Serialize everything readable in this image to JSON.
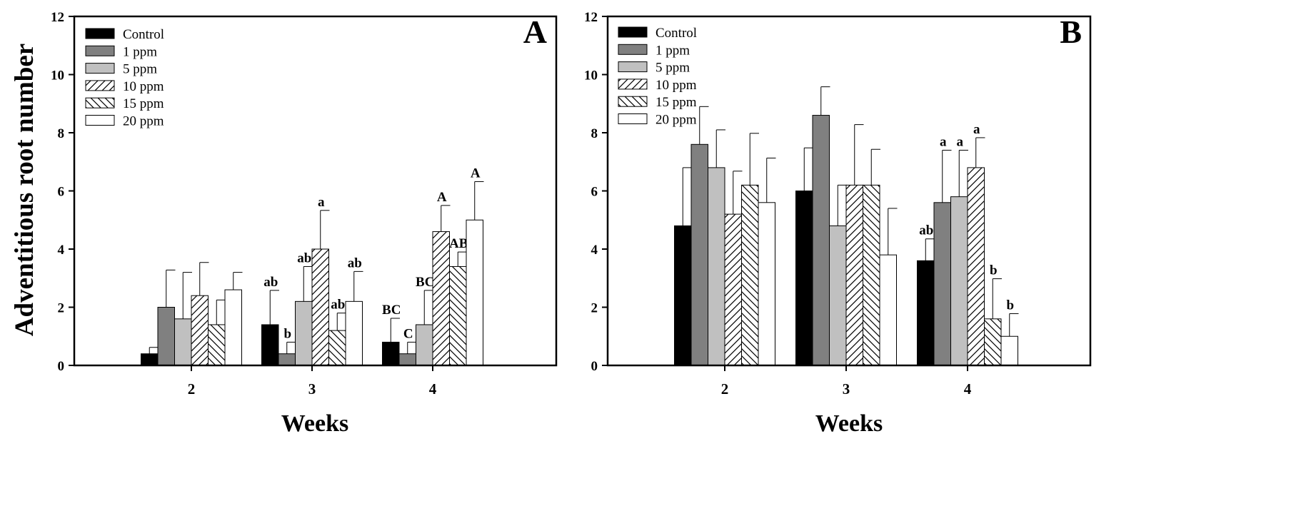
{
  "chart_data": [
    {
      "type": "bar",
      "panel_label": "A",
      "xlabel": "Weeks",
      "ylabel": "Adventitious root number",
      "ylim": [
        0,
        12
      ],
      "yticks": [
        "0",
        "2",
        "4",
        "6",
        "8",
        "10",
        "12"
      ],
      "categories": [
        "2",
        "3",
        "4"
      ],
      "legend_position": "top-left",
      "grid": false,
      "series": [
        {
          "name": "Control",
          "fill": "solid-black",
          "values": [
            0.4,
            1.4,
            0.8
          ],
          "errors": [
            0.22,
            1.18,
            0.82
          ],
          "labels": [
            "",
            "ab",
            "BC"
          ]
        },
        {
          "name": "1 ppm",
          "fill": "solid-dark-gray",
          "values": [
            2.0,
            0.4,
            0.4
          ],
          "errors": [
            1.28,
            0.4,
            0.4
          ],
          "labels": [
            "",
            "b",
            "C"
          ]
        },
        {
          "name": "5 ppm",
          "fill": "solid-light-gray",
          "values": [
            1.6,
            2.2,
            1.4
          ],
          "errors": [
            1.6,
            1.2,
            1.18
          ],
          "labels": [
            "",
            "ab",
            "BC"
          ]
        },
        {
          "name": "10 ppm",
          "fill": "forward-diagonal-hatch",
          "values": [
            2.4,
            4.0,
            4.6
          ],
          "errors": [
            1.14,
            1.33,
            0.9
          ],
          "labels": [
            "",
            "a",
            "A"
          ]
        },
        {
          "name": "15 ppm",
          "fill": "backward-diagonal-hatch",
          "values": [
            1.4,
            1.2,
            3.4
          ],
          "errors": [
            0.85,
            0.6,
            0.5
          ],
          "labels": [
            "",
            "ab",
            "AB"
          ]
        },
        {
          "name": "20 ppm",
          "fill": "white",
          "values": [
            2.6,
            2.2,
            5.0
          ],
          "errors": [
            0.6,
            1.03,
            1.32
          ],
          "labels": [
            "",
            "ab",
            "A"
          ]
        }
      ]
    },
    {
      "type": "bar",
      "panel_label": "B",
      "xlabel": "Weeks",
      "ylabel": "",
      "ylim": [
        0,
        12
      ],
      "yticks": [
        "0",
        "2",
        "4",
        "6",
        "8",
        "10",
        "12"
      ],
      "categories": [
        "2",
        "3",
        "4"
      ],
      "legend_position": "top-left",
      "grid": false,
      "series": [
        {
          "name": "Control",
          "fill": "solid-black",
          "values": [
            4.8,
            6.0,
            3.6
          ],
          "errors": [
            2.0,
            1.48,
            0.75
          ],
          "labels": [
            "",
            "",
            "ab"
          ]
        },
        {
          "name": "1 ppm",
          "fill": "solid-dark-gray",
          "values": [
            7.6,
            8.6,
            5.6
          ],
          "errors": [
            1.3,
            0.98,
            1.8
          ],
          "labels": [
            "",
            "",
            "a"
          ]
        },
        {
          "name": "5 ppm",
          "fill": "solid-light-gray",
          "values": [
            6.8,
            4.8,
            5.8
          ],
          "errors": [
            1.3,
            1.4,
            1.6
          ],
          "labels": [
            "",
            "",
            "a"
          ]
        },
        {
          "name": "10 ppm",
          "fill": "forward-diagonal-hatch",
          "values": [
            5.2,
            6.2,
            6.8
          ],
          "errors": [
            1.48,
            2.08,
            1.03
          ],
          "labels": [
            "",
            "",
            "a"
          ]
        },
        {
          "name": "15 ppm",
          "fill": "backward-diagonal-hatch",
          "values": [
            6.2,
            6.2,
            1.6
          ],
          "errors": [
            1.78,
            1.23,
            1.38
          ],
          "labels": [
            "",
            "",
            "b"
          ]
        },
        {
          "name": "20 ppm",
          "fill": "white",
          "values": [
            5.6,
            3.8,
            1.0
          ],
          "errors": [
            1.53,
            1.6,
            0.78
          ],
          "labels": [
            "",
            "",
            "b"
          ]
        }
      ]
    }
  ],
  "colors": {
    "axis": "#000000",
    "solid-black": "#000000",
    "solid-dark-gray": "#808080",
    "solid-light-gray": "#c0c0c0",
    "white": "#ffffff"
  }
}
